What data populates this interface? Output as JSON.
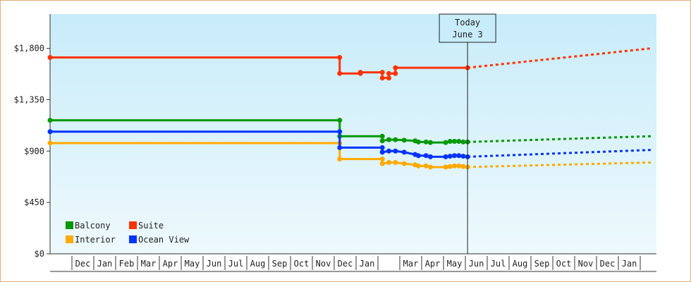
{
  "chart_data": {
    "type": "line",
    "title": "",
    "xlabel": "",
    "ylabel": "",
    "y_ticks": [
      "$0",
      "$450",
      "$900",
      "$1,350",
      "$1,800"
    ],
    "ylim": [
      0,
      2100
    ],
    "month_labels": [
      "",
      "Dec",
      "Jan",
      "Feb",
      "Mar",
      "Apr",
      "May",
      "Jun",
      "Jul",
      "Aug",
      "Sep",
      "Oct",
      "Nov",
      "Dec",
      "Jan",
      "",
      "Mar",
      "Apr",
      "May",
      "Jun",
      "Jul",
      "Aug",
      "Sep",
      "Oct",
      "Nov",
      "Dec",
      "Jan",
      ""
    ],
    "today": {
      "label": "Today",
      "date": "June 3",
      "month_index": 19.1
    },
    "grid": false,
    "legend_position": "bottom-left",
    "series": [
      {
        "name": "Balcony",
        "color": "#009900",
        "points": [
          [
            0.0,
            1170
          ],
          [
            13.25,
            1170
          ],
          [
            13.25,
            1030
          ],
          [
            15.2,
            1030
          ],
          [
            15.2,
            990
          ],
          [
            15.5,
            1000
          ],
          [
            15.8,
            1000
          ],
          [
            16.2,
            995
          ],
          [
            16.7,
            990
          ],
          [
            16.85,
            980
          ],
          [
            17.2,
            980
          ],
          [
            17.4,
            975
          ],
          [
            18.1,
            975
          ],
          [
            18.3,
            985
          ],
          [
            18.5,
            985
          ],
          [
            18.7,
            985
          ],
          [
            18.9,
            980
          ],
          [
            19.1,
            980
          ]
        ],
        "forecast": [
          [
            19.1,
            980
          ],
          [
            27.5,
            1030
          ]
        ]
      },
      {
        "name": "Suite",
        "color": "#ff3300",
        "points": [
          [
            0.0,
            1720
          ],
          [
            13.25,
            1720
          ],
          [
            13.25,
            1580
          ],
          [
            14.2,
            1580
          ],
          [
            14.2,
            1590
          ],
          [
            15.2,
            1590
          ],
          [
            15.2,
            1540
          ],
          [
            15.5,
            1540
          ],
          [
            15.5,
            1580
          ],
          [
            15.8,
            1580
          ],
          [
            15.8,
            1630
          ],
          [
            19.1,
            1630
          ]
        ],
        "forecast": [
          [
            19.1,
            1630
          ],
          [
            27.5,
            1800
          ]
        ]
      },
      {
        "name": "Interior",
        "color": "#ffaa00",
        "points": [
          [
            0.0,
            970
          ],
          [
            13.25,
            970
          ],
          [
            13.25,
            830
          ],
          [
            15.2,
            830
          ],
          [
            15.2,
            790
          ],
          [
            15.5,
            800
          ],
          [
            15.8,
            800
          ],
          [
            16.2,
            790
          ],
          [
            16.7,
            780
          ],
          [
            16.85,
            770
          ],
          [
            17.2,
            770
          ],
          [
            17.4,
            760
          ],
          [
            18.1,
            760
          ],
          [
            18.3,
            765
          ],
          [
            18.5,
            770
          ],
          [
            18.7,
            770
          ],
          [
            18.9,
            765
          ],
          [
            19.1,
            760
          ]
        ],
        "forecast": [
          [
            19.1,
            760
          ],
          [
            27.5,
            800
          ]
        ]
      },
      {
        "name": "Ocean View",
        "color": "#0033ff",
        "points": [
          [
            0.0,
            1070
          ],
          [
            13.25,
            1070
          ],
          [
            13.25,
            930
          ],
          [
            15.2,
            930
          ],
          [
            15.2,
            890
          ],
          [
            15.5,
            900
          ],
          [
            15.8,
            900
          ],
          [
            16.2,
            890
          ],
          [
            16.7,
            870
          ],
          [
            16.85,
            860
          ],
          [
            17.2,
            860
          ],
          [
            17.4,
            850
          ],
          [
            18.1,
            850
          ],
          [
            18.3,
            855
          ],
          [
            18.5,
            860
          ],
          [
            18.7,
            860
          ],
          [
            18.9,
            855
          ],
          [
            19.1,
            850
          ]
        ],
        "forecast": [
          [
            19.1,
            850
          ],
          [
            27.5,
            910
          ]
        ]
      }
    ]
  }
}
